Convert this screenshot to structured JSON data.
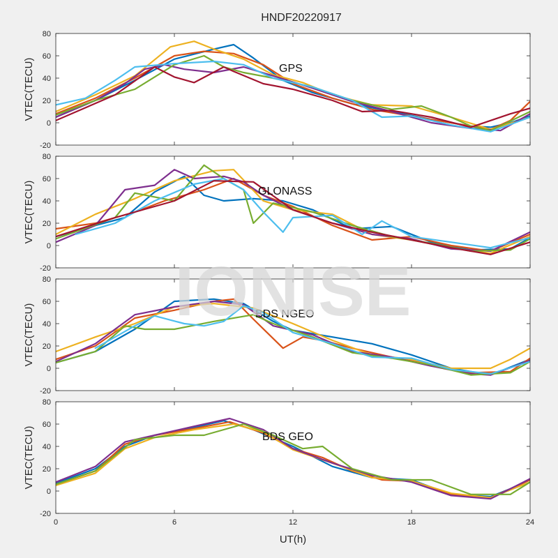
{
  "figure": {
    "title": "HNDF20220917",
    "xlabel": "UT(h)",
    "watermark": "IONISE"
  },
  "colors": [
    "#0072BD",
    "#D95319",
    "#EDB120",
    "#7E2F8E",
    "#77AC30",
    "#4DBEEE",
    "#A2142F"
  ],
  "chart_data": [
    {
      "type": "line",
      "annotation": "GPS",
      "ylabel": "VTEC(TECU)",
      "xlim": [
        0,
        24
      ],
      "ylim": [
        -20,
        80
      ],
      "xticks": [
        0,
        6,
        12,
        18,
        24
      ],
      "yticks": [
        -20,
        0,
        20,
        40,
        60,
        80
      ],
      "series": [
        {
          "x": [
            0,
            2,
            4,
            6,
            8,
            9,
            10,
            11.5,
            13,
            15,
            17,
            19,
            21,
            22,
            23,
            24
          ],
          "y": [
            5,
            20,
            38,
            57,
            66,
            70,
            58,
            38,
            27,
            17,
            10,
            3,
            -3,
            -4,
            0,
            6
          ]
        },
        {
          "x": [
            0,
            2,
            4,
            6,
            7.5,
            9,
            10.5,
            12,
            14,
            16,
            18,
            20,
            22,
            23,
            24
          ],
          "y": [
            8,
            22,
            40,
            60,
            64,
            62,
            52,
            35,
            22,
            12,
            6,
            0,
            -6,
            2,
            19
          ]
        },
        {
          "x": [
            0,
            2,
            4,
            5.8,
            7,
            8,
            9.5,
            11,
            12.5,
            14,
            16,
            18,
            20,
            22,
            24
          ],
          "y": [
            10,
            25,
            42,
            68,
            73,
            66,
            57,
            43,
            36,
            25,
            16,
            15,
            5,
            -6,
            5
          ]
        },
        {
          "x": [
            0,
            2,
            3.5,
            4.5,
            5.5,
            6.5,
            8,
            9.5,
            11,
            13,
            15,
            17,
            19,
            21,
            22.5,
            24
          ],
          "y": [
            5,
            20,
            35,
            48,
            52,
            48,
            45,
            50,
            42,
            31,
            19,
            10,
            0,
            -5,
            -7,
            8
          ]
        },
        {
          "x": [
            0,
            2,
            4,
            6,
            7.5,
            8.5,
            9.5,
            11,
            13,
            15,
            17,
            18.5,
            20,
            21,
            22,
            24
          ],
          "y": [
            7,
            20,
            30,
            52,
            60,
            50,
            45,
            40,
            32,
            20,
            12,
            15,
            5,
            -3,
            -7,
            10
          ]
        },
        {
          "x": [
            0,
            1.5,
            3,
            4,
            6,
            8,
            9.5,
            11,
            13,
            15,
            16.5,
            18,
            20,
            22,
            24
          ],
          "y": [
            16,
            22,
            38,
            50,
            53,
            55,
            52,
            40,
            32,
            20,
            5,
            6,
            -2,
            -8,
            5
          ]
        },
        {
          "x": [
            0,
            3,
            5,
            6,
            7,
            8.5,
            9,
            10.5,
            12,
            14,
            15.5,
            17,
            19,
            21,
            23,
            24
          ],
          "y": [
            2,
            25,
            50,
            41,
            36,
            50,
            46,
            35,
            30,
            20,
            10,
            11,
            5,
            -4,
            8,
            13
          ]
        }
      ]
    },
    {
      "type": "line",
      "annotation": "GLONASS",
      "ylabel": "VTEC(TECU)",
      "xlim": [
        0,
        24
      ],
      "ylim": [
        -20,
        80
      ],
      "xticks": [
        0,
        6,
        12,
        18,
        24
      ],
      "yticks": [
        -20,
        0,
        20,
        40,
        60,
        80
      ],
      "series": [
        {
          "x": [
            0,
            2,
            3.5,
            5,
            6.5,
            7.5,
            8.5,
            10,
            11.5,
            13,
            15,
            17,
            19,
            21,
            23,
            24
          ],
          "y": [
            8,
            18,
            25,
            48,
            62,
            45,
            40,
            42,
            40,
            32,
            15,
            17,
            3,
            -4,
            -3,
            7
          ]
        },
        {
          "x": [
            0,
            2,
            4,
            5.5,
            7.5,
            9,
            10.5,
            12,
            14,
            16,
            18,
            20,
            22,
            24
          ],
          "y": [
            15,
            20,
            30,
            40,
            50,
            60,
            45,
            35,
            18,
            5,
            8,
            0,
            -5,
            10
          ]
        },
        {
          "x": [
            0,
            2,
            4,
            6,
            8,
            9,
            10.5,
            12,
            14,
            16,
            18,
            20,
            22,
            24
          ],
          "y": [
            10,
            28,
            42,
            58,
            67,
            68,
            40,
            32,
            28,
            10,
            5,
            -2,
            -7,
            8
          ]
        },
        {
          "x": [
            0,
            2,
            3.5,
            5,
            6,
            7,
            8.5,
            9.5,
            10.5,
            12,
            14,
            16,
            18,
            20,
            22,
            24
          ],
          "y": [
            3,
            18,
            50,
            54,
            68,
            60,
            62,
            57,
            45,
            32,
            20,
            10,
            6,
            -3,
            -5,
            12
          ]
        },
        {
          "x": [
            0,
            3,
            4,
            6,
            7.5,
            8.5,
            9.5,
            10,
            11,
            13,
            15,
            17,
            19,
            21,
            23,
            24
          ],
          "y": [
            6,
            25,
            47,
            40,
            72,
            60,
            50,
            20,
            38,
            30,
            18,
            8,
            2,
            -5,
            -4,
            6
          ]
        },
        {
          "x": [
            1,
            3,
            5,
            7,
            8.5,
            9.5,
            10.5,
            11.5,
            12,
            14,
            15.5,
            16.5,
            18,
            20,
            22,
            24
          ],
          "y": [
            10,
            20,
            40,
            55,
            60,
            50,
            30,
            12,
            25,
            27,
            10,
            22,
            8,
            3,
            -2,
            7
          ]
        },
        {
          "x": [
            0,
            3,
            6,
            8,
            10,
            12,
            14,
            16,
            18,
            20,
            22,
            24
          ],
          "y": [
            8,
            25,
            40,
            58,
            57,
            32,
            20,
            12,
            5,
            -2,
            -8,
            3
          ]
        }
      ]
    },
    {
      "type": "line",
      "annotation": "BDS NGEO",
      "ylabel": "VTEC(TECU)",
      "xlim": [
        0,
        24
      ],
      "ylim": [
        -20,
        80
      ],
      "xticks": [
        0,
        6,
        12,
        18,
        24
      ],
      "yticks": [
        -20,
        0,
        20,
        40,
        60,
        80
      ],
      "series": [
        {
          "x": [
            0,
            2,
            4,
            6,
            8,
            9.5,
            11,
            12,
            14,
            16,
            18,
            20,
            22,
            24
          ],
          "y": [
            5,
            15,
            35,
            60,
            62,
            58,
            42,
            34,
            28,
            22,
            12,
            0,
            -6,
            8
          ]
        },
        {
          "x": [
            0,
            2,
            4,
            6,
            8,
            9,
            10,
            11.5,
            12.5,
            13.5,
            15,
            17,
            19,
            21,
            23,
            24
          ],
          "y": [
            8,
            20,
            45,
            52,
            60,
            62,
            44,
            18,
            28,
            25,
            18,
            10,
            3,
            -4,
            -3,
            9
          ]
        },
        {
          "x": [
            0,
            2,
            4,
            6,
            8,
            10,
            12,
            14,
            16,
            18,
            20,
            22,
            23,
            24
          ],
          "y": [
            15,
            28,
            40,
            55,
            58,
            54,
            40,
            25,
            12,
            8,
            0,
            0,
            8,
            18
          ]
        },
        {
          "x": [
            0,
            2,
            4,
            6,
            8,
            9.5,
            11,
            13,
            15,
            17,
            19,
            21,
            22,
            24
          ],
          "y": [
            6,
            22,
            48,
            55,
            60,
            57,
            38,
            30,
            15,
            10,
            2,
            -5,
            -6,
            7
          ]
        },
        {
          "x": [
            0,
            2,
            3.5,
            4.5,
            6,
            8,
            10,
            11,
            13,
            15,
            17,
            19,
            21,
            23,
            24
          ],
          "y": [
            5,
            15,
            38,
            35,
            35,
            42,
            48,
            40,
            28,
            14,
            9,
            3,
            -6,
            -4,
            6
          ]
        },
        {
          "x": [
            2,
            4,
            5,
            6.5,
            7.5,
            8.5,
            9.5,
            10.5,
            12,
            14,
            16,
            18,
            20,
            22,
            24
          ],
          "y": [
            18,
            38,
            47,
            40,
            38,
            42,
            56,
            50,
            32,
            22,
            10,
            9,
            -1,
            -5,
            6
          ]
        }
      ]
    },
    {
      "type": "line",
      "annotation": "BDS GEO",
      "ylabel": "VTEC(TECU)",
      "xlim": [
        0,
        24
      ],
      "ylim": [
        -20,
        80
      ],
      "xticks": [
        0,
        6,
        12,
        18,
        24
      ],
      "yticks": [
        -20,
        0,
        20,
        40,
        60,
        80
      ],
      "series": [
        {
          "x": [
            0,
            2,
            3.5,
            5,
            7,
            8.5,
            10,
            12,
            14,
            16,
            18,
            20,
            22,
            23,
            24
          ],
          "y": [
            7,
            20,
            40,
            50,
            57,
            63,
            55,
            40,
            22,
            12,
            10,
            -3,
            -5,
            2,
            10
          ]
        },
        {
          "x": [
            0,
            2,
            3.5,
            5,
            7,
            8.8,
            10.5,
            12,
            13.5,
            15,
            16.5,
            18,
            20,
            22,
            24
          ],
          "y": [
            6,
            18,
            42,
            50,
            56,
            62,
            52,
            38,
            30,
            18,
            10,
            9,
            -3,
            -6,
            10
          ]
        },
        {
          "x": [
            0,
            2,
            3.5,
            5,
            7,
            9,
            10.5,
            12,
            14,
            16,
            18,
            20,
            22,
            24
          ],
          "y": [
            5,
            16,
            38,
            48,
            55,
            60,
            53,
            37,
            25,
            12,
            9,
            -2,
            -6,
            8
          ]
        },
        {
          "x": [
            0,
            2,
            3.5,
            5,
            7,
            8.8,
            10.5,
            12,
            14,
            16,
            18,
            20,
            22,
            24
          ],
          "y": [
            8,
            22,
            44,
            50,
            58,
            65,
            55,
            38,
            25,
            14,
            8,
            -4,
            -7,
            11
          ]
        },
        {
          "x": [
            0,
            2,
            4,
            6,
            7.5,
            9.5,
            11,
            12.5,
            13.5,
            15,
            17,
            19,
            21,
            23,
            24
          ],
          "y": [
            6,
            18,
            46,
            50,
            50,
            60,
            50,
            38,
            40,
            20,
            10,
            10,
            -3,
            -3,
            8
          ]
        }
      ]
    }
  ]
}
